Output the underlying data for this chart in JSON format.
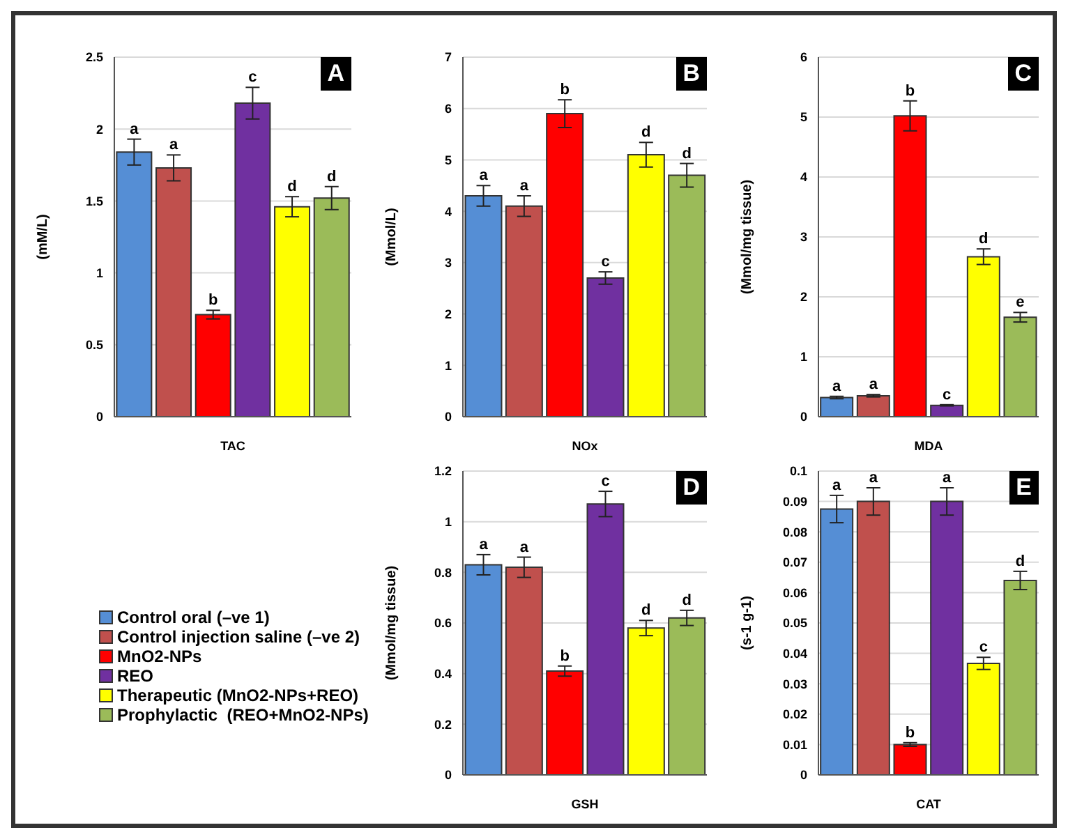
{
  "chart_data": [
    {
      "type": "bar",
      "categories": [
        null,
        null,
        null,
        null,
        null,
        null
      ],
      "xlabel": "TAC",
      "ylabel": "(mM/L)",
      "ylim": [
        0,
        2.5
      ],
      "yticks": [
        0,
        0.5,
        1,
        1.5,
        2,
        2.5
      ],
      "grid": "y",
      "legend": "bottom left",
      "annotations": [
        "A"
      ],
      "series": [
        {
          "name": "Control oral (–ve 1)",
          "color": "#558ed5",
          "values": [
            1.84,
            null,
            null,
            null,
            null,
            null
          ],
          "errors": [
            0.09,
            null,
            null,
            null,
            null,
            null
          ],
          "value_labels": [
            "a",
            null,
            null,
            null,
            null,
            null
          ]
        },
        {
          "name": "Control injection saline (–ve 2)",
          "color": "#c0504d",
          "values": [
            null,
            1.73,
            null,
            null,
            null,
            null
          ],
          "errors": [
            null,
            0.09,
            null,
            null,
            null,
            null
          ],
          "value_labels": [
            null,
            "a",
            null,
            null,
            null,
            null
          ]
        },
        {
          "name": "MnO2-NPs",
          "color": "#ff0000",
          "values": [
            null,
            null,
            0.71,
            null,
            null,
            null
          ],
          "errors": [
            null,
            null,
            0.03,
            null,
            null,
            null
          ],
          "value_labels": [
            null,
            null,
            "b",
            null,
            null,
            null
          ]
        },
        {
          "name": "REO",
          "color": "#7030a0",
          "values": [
            null,
            null,
            null,
            2.18,
            null,
            null
          ],
          "errors": [
            null,
            null,
            null,
            0.11,
            null,
            null
          ],
          "value_labels": [
            null,
            null,
            null,
            "c",
            null,
            null
          ]
        },
        {
          "name": "Therapeutic (MnO2-NPs+REO)",
          "color": "#ffff00",
          "values": [
            null,
            null,
            null,
            null,
            1.46,
            null
          ],
          "errors": [
            null,
            null,
            null,
            null,
            0.07,
            null
          ],
          "value_labels": [
            null,
            null,
            null,
            null,
            "d",
            null
          ]
        },
        {
          "name": "Prophylactic  (REO+MnO2-NPs)",
          "color": "#9bbb59",
          "values": [
            null,
            null,
            null,
            null,
            null,
            1.52
          ],
          "errors": [
            null,
            null,
            null,
            null,
            null,
            0.08
          ],
          "value_labels": [
            null,
            null,
            null,
            null,
            null,
            "d"
          ]
        }
      ]
    },
    {
      "type": "bar",
      "categories": [
        null,
        null,
        null,
        null,
        null,
        null
      ],
      "xlabel": "NOx",
      "ylabel": "(Mmol/L)",
      "ylim": [
        0,
        7
      ],
      "yticks": [
        0,
        1,
        2,
        3,
        4,
        5,
        6,
        7
      ],
      "grid": "y",
      "annotations": [
        "B"
      ],
      "series": [
        {
          "color": "#558ed5",
          "values": [
            4.3,
            null,
            null,
            null,
            null,
            null
          ],
          "errors": [
            0.2,
            null,
            null,
            null,
            null,
            null
          ],
          "value_labels": [
            "a",
            null,
            null,
            null,
            null,
            null
          ]
        },
        {
          "color": "#c0504d",
          "values": [
            null,
            4.1,
            null,
            null,
            null,
            null
          ],
          "errors": [
            null,
            0.2,
            null,
            null,
            null,
            null
          ],
          "value_labels": [
            null,
            "a",
            null,
            null,
            null,
            null
          ]
        },
        {
          "color": "#ff0000",
          "values": [
            null,
            null,
            5.9,
            null,
            null,
            null
          ],
          "errors": [
            null,
            null,
            0.27,
            null,
            null,
            null
          ],
          "value_labels": [
            null,
            null,
            "b",
            null,
            null,
            null
          ]
        },
        {
          "color": "#7030a0",
          "values": [
            null,
            null,
            null,
            2.7,
            null,
            null
          ],
          "errors": [
            null,
            null,
            null,
            0.12,
            null,
            null
          ],
          "value_labels": [
            null,
            null,
            null,
            "c",
            null,
            null
          ]
        },
        {
          "color": "#ffff00",
          "values": [
            null,
            null,
            null,
            null,
            5.1,
            null
          ],
          "errors": [
            null,
            null,
            null,
            null,
            0.24,
            null
          ],
          "value_labels": [
            null,
            null,
            null,
            null,
            "d",
            null
          ]
        },
        {
          "color": "#9bbb59",
          "values": [
            null,
            null,
            null,
            null,
            null,
            4.7
          ],
          "errors": [
            null,
            null,
            null,
            null,
            null,
            0.23
          ],
          "value_labels": [
            null,
            null,
            null,
            null,
            null,
            "d"
          ]
        }
      ]
    },
    {
      "type": "bar",
      "categories": [
        null,
        null,
        null,
        null,
        null,
        null
      ],
      "xlabel": "MDA",
      "ylabel": "(Mmol/mg tissue)",
      "ylim": [
        0,
        6
      ],
      "yticks": [
        0,
        1,
        2,
        3,
        4,
        5,
        6
      ],
      "grid": "y",
      "annotations": [
        "C"
      ],
      "series": [
        {
          "color": "#558ed5",
          "values": [
            0.32,
            null,
            null,
            null,
            null,
            null
          ],
          "errors": [
            0.02,
            null,
            null,
            null,
            null,
            null
          ],
          "value_labels": [
            "a",
            null,
            null,
            null,
            null,
            null
          ]
        },
        {
          "color": "#c0504d",
          "values": [
            null,
            0.35,
            null,
            null,
            null,
            null
          ],
          "errors": [
            null,
            0.02,
            null,
            null,
            null,
            null
          ],
          "value_labels": [
            null,
            "a",
            null,
            null,
            null,
            null
          ]
        },
        {
          "color": "#ff0000",
          "values": [
            null,
            null,
            5.02,
            null,
            null,
            null
          ],
          "errors": [
            null,
            null,
            0.25,
            null,
            null,
            null
          ],
          "value_labels": [
            null,
            null,
            "b",
            null,
            null,
            null
          ]
        },
        {
          "color": "#7030a0",
          "values": [
            null,
            null,
            null,
            0.19,
            null,
            null
          ],
          "errors": [
            null,
            null,
            null,
            0.01,
            null,
            null
          ],
          "value_labels": [
            null,
            null,
            null,
            "c",
            null,
            null
          ]
        },
        {
          "color": "#ffff00",
          "values": [
            null,
            null,
            null,
            null,
            2.67,
            null
          ],
          "errors": [
            null,
            null,
            null,
            null,
            0.13,
            null
          ],
          "value_labels": [
            null,
            null,
            null,
            null,
            "d",
            null
          ]
        },
        {
          "color": "#9bbb59",
          "values": [
            null,
            null,
            null,
            null,
            null,
            1.66
          ],
          "errors": [
            null,
            null,
            null,
            null,
            null,
            0.08
          ],
          "value_labels": [
            null,
            null,
            null,
            null,
            null,
            "e"
          ]
        }
      ]
    },
    {
      "type": "bar",
      "categories": [
        null,
        null,
        null,
        null,
        null,
        null
      ],
      "xlabel": "GSH",
      "ylabel": "(Mmol/mg tissue)",
      "ylim": [
        0,
        1.2
      ],
      "yticks": [
        0,
        0.2,
        0.4,
        0.6,
        0.8,
        1,
        1.2
      ],
      "grid": "y",
      "annotations": [
        "D"
      ],
      "series": [
        {
          "color": "#558ed5",
          "values": [
            0.83,
            null,
            null,
            null,
            null,
            null
          ],
          "errors": [
            0.04,
            null,
            null,
            null,
            null,
            null
          ],
          "value_labels": [
            "a",
            null,
            null,
            null,
            null,
            null
          ]
        },
        {
          "color": "#c0504d",
          "values": [
            null,
            0.82,
            null,
            null,
            null,
            null
          ],
          "errors": [
            null,
            0.04,
            null,
            null,
            null,
            null
          ],
          "value_labels": [
            null,
            "a",
            null,
            null,
            null,
            null
          ]
        },
        {
          "color": "#ff0000",
          "values": [
            null,
            null,
            0.41,
            null,
            null,
            null
          ],
          "errors": [
            null,
            null,
            0.02,
            null,
            null,
            null
          ],
          "value_labels": [
            null,
            null,
            "b",
            null,
            null,
            null
          ]
        },
        {
          "color": "#7030a0",
          "values": [
            null,
            null,
            null,
            1.07,
            null,
            null
          ],
          "errors": [
            null,
            null,
            null,
            0.05,
            null,
            null
          ],
          "value_labels": [
            null,
            null,
            null,
            "c",
            null,
            null
          ]
        },
        {
          "color": "#ffff00",
          "values": [
            null,
            null,
            null,
            null,
            0.58,
            null
          ],
          "errors": [
            null,
            null,
            null,
            null,
            0.03,
            null
          ],
          "value_labels": [
            null,
            null,
            null,
            null,
            "d",
            null
          ]
        },
        {
          "color": "#9bbb59",
          "values": [
            null,
            null,
            null,
            null,
            null,
            0.62
          ],
          "errors": [
            null,
            null,
            null,
            null,
            null,
            0.03
          ],
          "value_labels": [
            null,
            null,
            null,
            null,
            null,
            "d"
          ]
        }
      ]
    },
    {
      "type": "bar",
      "categories": [
        null,
        null,
        null,
        null,
        null,
        null
      ],
      "xlabel": "CAT",
      "ylabel": "(s-1 g-1)",
      "ylim": [
        0,
        0.1
      ],
      "yticks": [
        0,
        0.01,
        0.02,
        0.03,
        0.04,
        0.05,
        0.06,
        0.07,
        0.08,
        0.09,
        0.1
      ],
      "grid": "y",
      "annotations": [
        "E"
      ],
      "series": [
        {
          "color": "#558ed5",
          "values": [
            0.0875,
            null,
            null,
            null,
            null,
            null
          ],
          "errors": [
            0.0045,
            null,
            null,
            null,
            null,
            null
          ],
          "value_labels": [
            "a",
            null,
            null,
            null,
            null,
            null
          ]
        },
        {
          "color": "#c0504d",
          "values": [
            null,
            0.09,
            null,
            null,
            null,
            null
          ],
          "errors": [
            null,
            0.0045,
            null,
            null,
            null,
            null
          ],
          "value_labels": [
            null,
            "a",
            null,
            null,
            null,
            null
          ]
        },
        {
          "color": "#ff0000",
          "values": [
            null,
            null,
            0.01,
            null,
            null,
            null
          ],
          "errors": [
            null,
            null,
            0.0006,
            null,
            null,
            null
          ],
          "value_labels": [
            null,
            null,
            "b",
            null,
            null,
            null
          ]
        },
        {
          "color": "#7030a0",
          "values": [
            null,
            null,
            null,
            0.09,
            null,
            null
          ],
          "errors": [
            null,
            null,
            null,
            0.0045,
            null,
            null
          ],
          "value_labels": [
            null,
            null,
            null,
            "a",
            null,
            null
          ]
        },
        {
          "color": "#ffff00",
          "values": [
            null,
            null,
            null,
            null,
            0.0367,
            null
          ],
          "errors": [
            null,
            null,
            null,
            null,
            0.002,
            null
          ],
          "value_labels": [
            null,
            null,
            null,
            null,
            "c",
            null
          ]
        },
        {
          "color": "#9bbb59",
          "values": [
            null,
            null,
            null,
            null,
            null,
            0.064
          ],
          "errors": [
            null,
            null,
            null,
            null,
            null,
            0.003
          ],
          "value_labels": [
            null,
            null,
            null,
            null,
            null,
            "d"
          ]
        }
      ]
    }
  ]
}
